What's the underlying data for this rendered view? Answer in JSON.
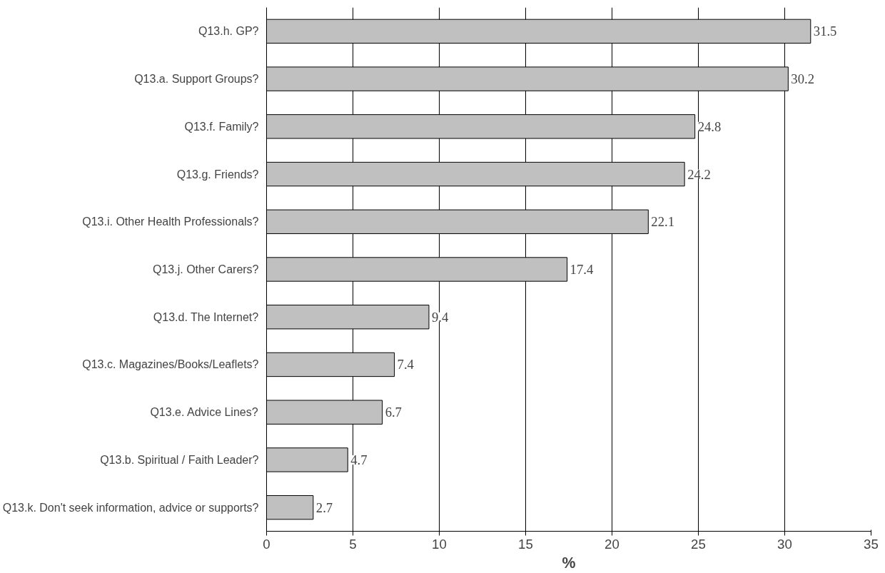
{
  "chart_data": {
    "type": "bar",
    "orientation": "horizontal",
    "xlabel": "%",
    "categories": [
      "Q13.h. GP?",
      "Q13.a. Support Groups?",
      "Q13.f. Family?",
      "Q13.g. Friends?",
      "Q13.i. Other Health Professionals?",
      "Q13.j. Other Carers?",
      "Q13.d. The Internet?",
      "Q13.c. Magazines/Books/Leaflets?",
      "Q13.e. Advice Lines?",
      "Q13.b. Spiritual / Faith Leader?",
      "Q13.k. Don't seek information, advice or supports?"
    ],
    "values": [
      31.5,
      30.2,
      24.8,
      24.2,
      22.1,
      17.4,
      9.4,
      7.4,
      6.7,
      4.7,
      2.7
    ],
    "color": "#c0c0c0",
    "xlim": [
      0,
      35
    ],
    "xticks": [
      0,
      5,
      10,
      15,
      20,
      25,
      30,
      35
    ],
    "grid": "x",
    "data_labels": true
  }
}
